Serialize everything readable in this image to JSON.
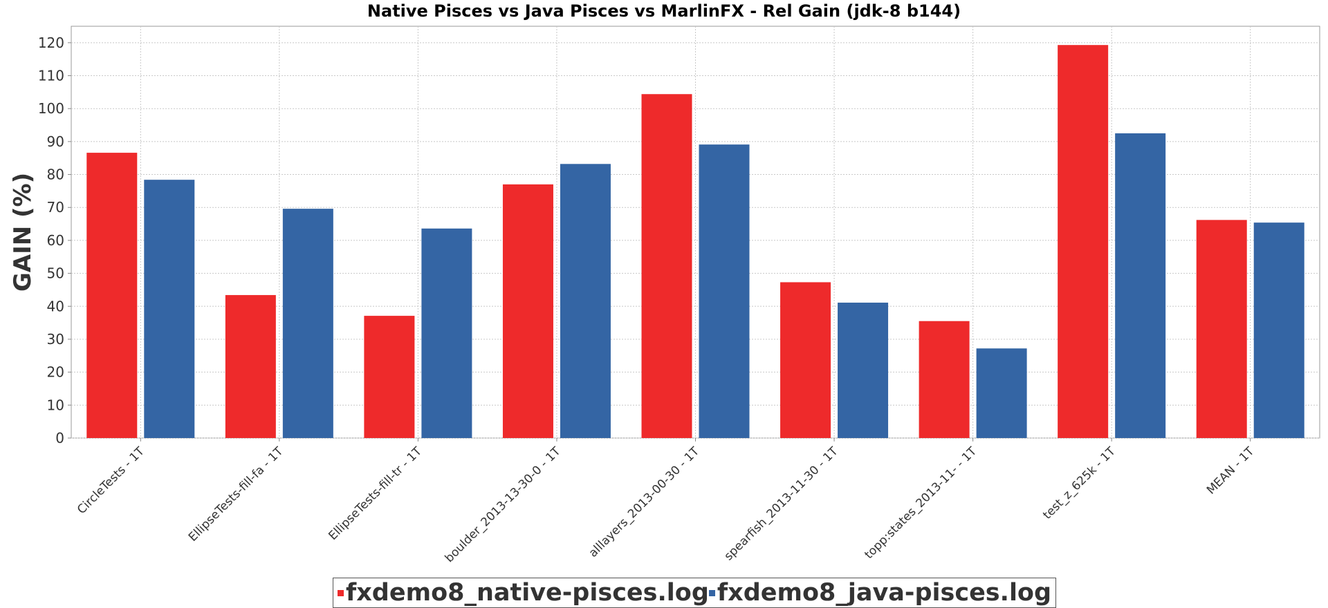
{
  "chart_data": {
    "type": "bar",
    "title": "Native Pisces vs Java Pisces vs MarlinFX - Rel Gain (jdk-8 b144)",
    "xlabel": "",
    "ylabel": "GAIN (%)",
    "ylim": [
      0,
      125
    ],
    "yticks": [
      0,
      10,
      20,
      30,
      40,
      50,
      60,
      70,
      80,
      90,
      100,
      110,
      120
    ],
    "grid": true,
    "legend_position": "bottom",
    "categories": [
      "CircleTests - 1T",
      "EllipseTests-fill-fa - 1T",
      "EllipseTests-fill-tr - 1T",
      "boulder_2013-13-30-0 - 1T",
      "alllayers_2013-00-30 - 1T",
      "spearfish_2013-11-30 - 1T",
      "topp:states_2013-11- - 1T",
      "test_z_625k - 1T",
      "MEAN - 1T"
    ],
    "series": [
      {
        "name": "fxdemo8_native-pisces.log",
        "color": "#ee2a2b",
        "values": [
          86.6,
          43.4,
          37.1,
          77.0,
          104.4,
          47.3,
          35.5,
          119.3,
          66.2
        ]
      },
      {
        "name": "fxdemo8_java-pisces.log",
        "color": "#3465a4",
        "values": [
          78.4,
          69.6,
          63.6,
          83.2,
          89.1,
          41.1,
          27.2,
          92.5,
          65.4
        ]
      }
    ]
  }
}
